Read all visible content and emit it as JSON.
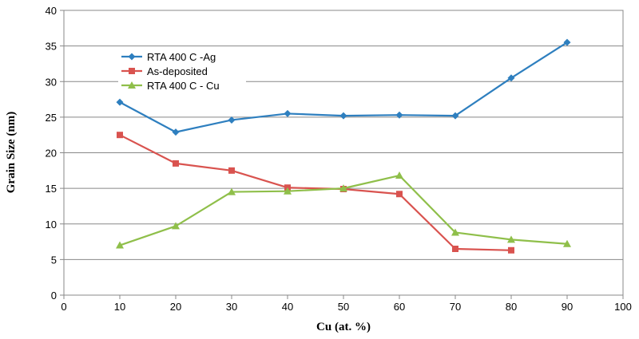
{
  "chart_data": {
    "type": "line",
    "title": "",
    "xlabel": "Cu (at. %)",
    "ylabel": "Grain Size (nm)",
    "xlim": [
      0,
      100
    ],
    "ylim": [
      0,
      40
    ],
    "xticks": [
      0,
      10,
      20,
      30,
      40,
      50,
      60,
      70,
      80,
      90,
      100
    ],
    "yticks": [
      0,
      5,
      10,
      15,
      20,
      25,
      30,
      35,
      40
    ],
    "grid": "horizontal",
    "legend_position": "top-left",
    "series": [
      {
        "name": "RTA 400 C -Ag",
        "color": "#2e7fbf",
        "marker": "diamond",
        "x": [
          10,
          20,
          30,
          40,
          50,
          60,
          70,
          80,
          90
        ],
        "y": [
          27.1,
          22.9,
          24.6,
          25.5,
          25.2,
          25.3,
          25.2,
          30.5,
          35.5
        ]
      },
      {
        "name": "As-deposited",
        "color": "#d9534f",
        "marker": "square",
        "x": [
          10,
          20,
          30,
          40,
          50,
          60,
          70,
          80
        ],
        "y": [
          22.5,
          18.5,
          17.5,
          15.1,
          14.9,
          14.2,
          6.5,
          6.3
        ]
      },
      {
        "name": "RTA 400 C - Cu",
        "color": "#8fbf4a",
        "marker": "triangle",
        "x": [
          10,
          20,
          30,
          40,
          50,
          60,
          70,
          80,
          90
        ],
        "y": [
          7.0,
          9.7,
          14.5,
          14.6,
          15.0,
          16.8,
          8.8,
          7.8,
          7.2
        ]
      }
    ]
  }
}
